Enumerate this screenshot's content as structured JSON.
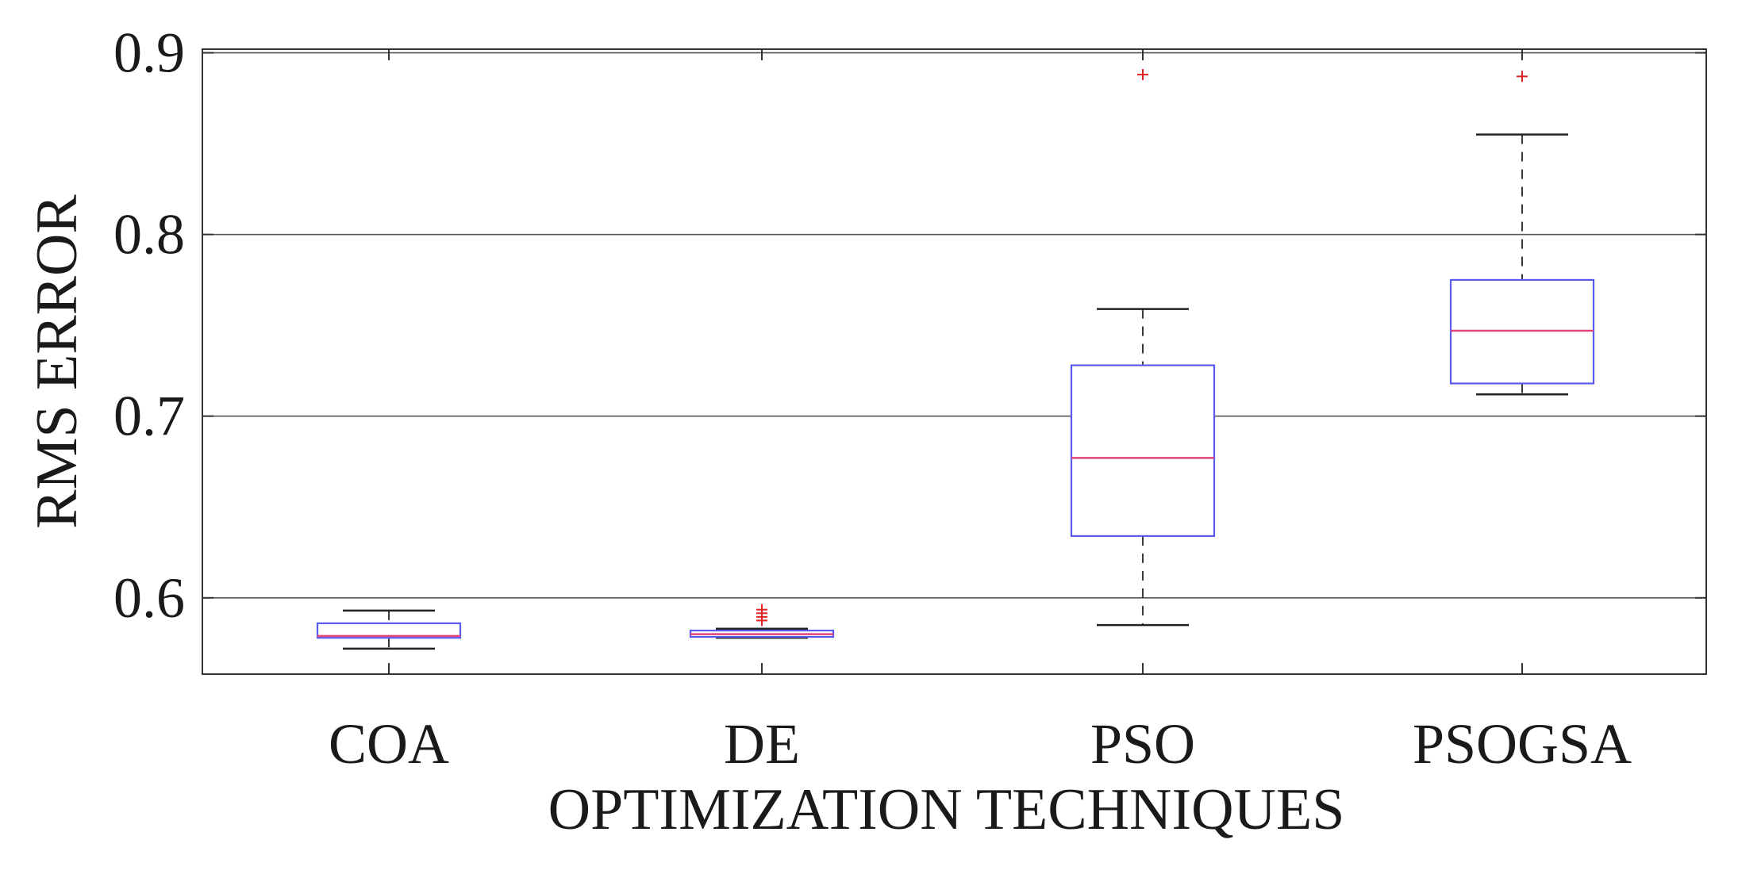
{
  "chart_data": {
    "type": "boxplot",
    "title": "",
    "xlabel": "OPTIMIZATION TECHNIQUES",
    "ylabel": "RMS ERROR",
    "ylim": [
      0.558,
      0.902
    ],
    "yticks": [
      0.6,
      0.7,
      0.8,
      0.9
    ],
    "ytick_labels": [
      "0.6",
      "0.7",
      "0.8",
      "0.9"
    ],
    "grid": true,
    "categories": [
      "COA",
      "DE",
      "PSO",
      "PSOGSA"
    ],
    "boxes": [
      {
        "name": "COA",
        "whisker_low": 0.572,
        "q1": 0.578,
        "median": 0.579,
        "q3": 0.586,
        "whisker_high": 0.593,
        "outliers": []
      },
      {
        "name": "DE",
        "whisker_low": 0.578,
        "q1": 0.5785,
        "median": 0.58,
        "q3": 0.582,
        "whisker_high": 0.583,
        "outliers": [
          0.5875,
          0.5895,
          0.5915,
          0.5935
        ]
      },
      {
        "name": "PSO",
        "whisker_low": 0.585,
        "q1": 0.634,
        "median": 0.677,
        "q3": 0.728,
        "whisker_high": 0.759,
        "outliers": [
          0.888
        ]
      },
      {
        "name": "PSOGSA",
        "whisker_low": 0.712,
        "q1": 0.718,
        "median": 0.747,
        "q3": 0.775,
        "whisker_high": 0.855,
        "outliers": [
          0.887
        ]
      }
    ],
    "colors": {
      "box": "#5a5af0",
      "median": "#e0457a",
      "whisker": "#222222",
      "outlier": "#dd2222",
      "grid": "#555555",
      "axis": "#333333"
    }
  }
}
